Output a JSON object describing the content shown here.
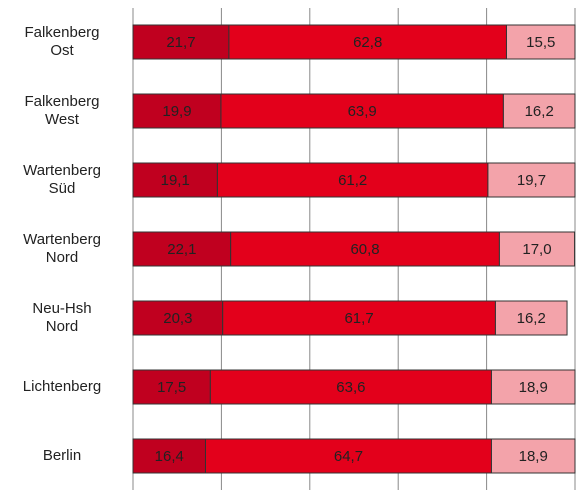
{
  "chart_data": {
    "type": "stacked_bar_horizontal",
    "categories": [
      "Falkenberg\nOst",
      "Falkenberg\nWest",
      "Wartenberg\nSüd",
      "Wartenberg\nNord",
      "Neu-Hsh\nNord",
      "Lichtenberg",
      "Berlin"
    ],
    "series": [
      {
        "color": "#c0001f",
        "values": [
          21.7,
          19.9,
          19.1,
          22.1,
          20.3,
          17.5,
          16.4
        ],
        "value_labels": [
          "21,7",
          "19,9",
          "19,1",
          "22,1",
          "20,3",
          "17,5",
          "16,4"
        ]
      },
      {
        "color": "#e3001b",
        "values": [
          62.8,
          63.9,
          61.2,
          60.8,
          61.7,
          63.6,
          64.7
        ],
        "value_labels": [
          "62,8",
          "63,9",
          "61,2",
          "60,8",
          "61,7",
          "63,6",
          "64,7"
        ]
      },
      {
        "color": "#f3a3aa",
        "values": [
          15.5,
          16.2,
          19.7,
          17.0,
          16.2,
          18.9,
          18.9
        ],
        "value_labels": [
          "15,5",
          "16,2",
          "19,7",
          "17,0",
          "16,2",
          "18,9",
          "18,9"
        ]
      }
    ],
    "xlim": [
      0,
      100
    ],
    "xticks": [
      0,
      20,
      40,
      60,
      80,
      100
    ],
    "grid": true
  }
}
